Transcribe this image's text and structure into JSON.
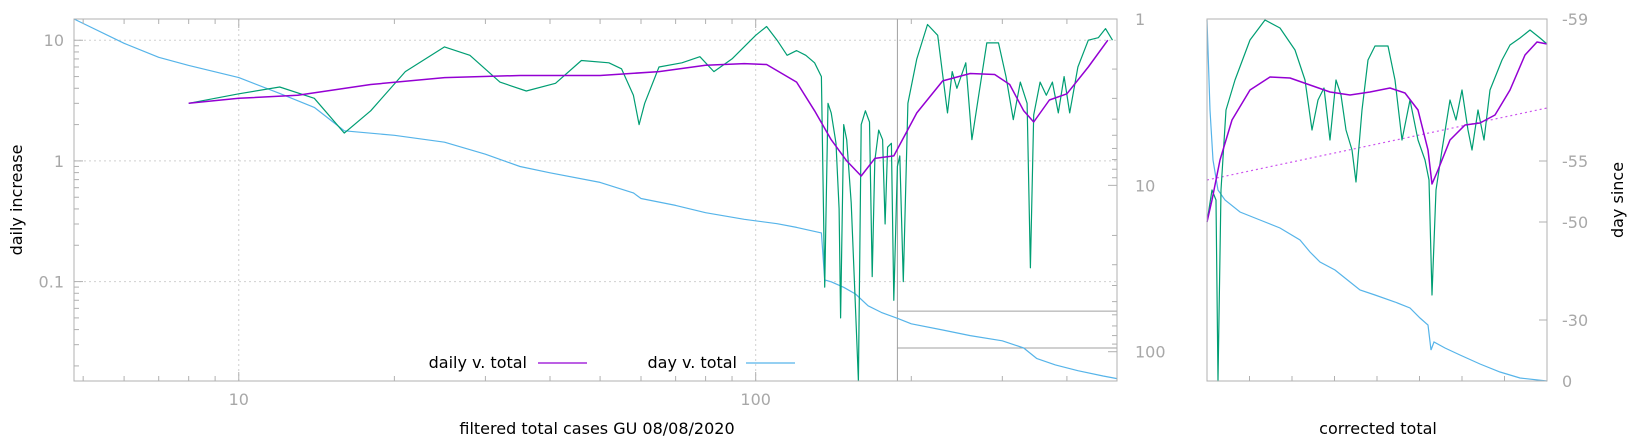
{
  "chart_data": [
    {
      "type": "line",
      "scale": "log-log",
      "xlabel": "filtered total cases GU 08/08/2020",
      "ylabel": "daily increase",
      "xlim": [
        4.8,
        500
      ],
      "ylim": [
        0.015,
        15
      ],
      "y2lim": [
        1,
        150
      ],
      "x_ticks": [
        {
          "v": 10,
          "label": "10"
        },
        {
          "v": 100,
          "label": "100"
        }
      ],
      "y_ticks": [
        {
          "v": 10,
          "label": "10"
        },
        {
          "v": 1,
          "label": "1"
        },
        {
          "v": 0.1,
          "label": "0.1"
        }
      ],
      "y2_ticks": [
        {
          "v": 1,
          "label": "1"
        },
        {
          "v": 10,
          "label": "10"
        },
        {
          "v": 100,
          "label": "100"
        }
      ],
      "grid": true,
      "legend": "bottom-center",
      "colors": {
        "daily": "#9400d3",
        "raw": "#009e73",
        "day": "#56b4e9",
        "axis": "#b0b0b0",
        "ref": "#a0a0a0"
      },
      "reference_lines": {
        "x": 188,
        "y2": [
          57,
          95
        ]
      },
      "series": [
        {
          "name": "daily v. total",
          "key": "daily",
          "points": [
            [
              8,
              3.0
            ],
            [
              10,
              3.3
            ],
            [
              13,
              3.5
            ],
            [
              18,
              4.3
            ],
            [
              25,
              4.9
            ],
            [
              35,
              5.1
            ],
            [
              50,
              5.1
            ],
            [
              65,
              5.5
            ],
            [
              80,
              6.2
            ],
            [
              95,
              6.4
            ],
            [
              105,
              6.3
            ],
            [
              120,
              4.5
            ],
            [
              130,
              2.6
            ],
            [
              140,
              1.5
            ],
            [
              150,
              1.0
            ],
            [
              160,
              0.75
            ],
            [
              170,
              1.05
            ],
            [
              185,
              1.1
            ],
            [
              205,
              2.5
            ],
            [
              230,
              4.6
            ],
            [
              260,
              5.3
            ],
            [
              290,
              5.2
            ],
            [
              310,
              4.3
            ],
            [
              330,
              2.6
            ],
            [
              345,
              2.1
            ],
            [
              370,
              3.2
            ],
            [
              400,
              3.6
            ],
            [
              440,
              6.0
            ],
            [
              480,
              10.0
            ]
          ]
        },
        {
          "name": "",
          "key": "raw",
          "points": [
            [
              8,
              3.0
            ],
            [
              10,
              3.6
            ],
            [
              12,
              4.1
            ],
            [
              14,
              3.3
            ],
            [
              16,
              1.7
            ],
            [
              18,
              2.6
            ],
            [
              21,
              5.5
            ],
            [
              25,
              8.8
            ],
            [
              28,
              7.5
            ],
            [
              32,
              4.5
            ],
            [
              36,
              3.8
            ],
            [
              41,
              4.4
            ],
            [
              46,
              6.8
            ],
            [
              52,
              6.5
            ],
            [
              55,
              5.8
            ],
            [
              58,
              3.5
            ],
            [
              59.5,
              2.0
            ],
            [
              61,
              3.0
            ],
            [
              65,
              6.0
            ],
            [
              72,
              6.5
            ],
            [
              78,
              7.3
            ],
            [
              83,
              5.5
            ],
            [
              90,
              7.0
            ],
            [
              100,
              11.0
            ],
            [
              105,
              13.0
            ],
            [
              110,
              10.0
            ],
            [
              115,
              7.5
            ],
            [
              120,
              8.2
            ],
            [
              125,
              7.5
            ],
            [
              130,
              6.5
            ],
            [
              134,
              5.0
            ],
            [
              136,
              0.09
            ],
            [
              138,
              3.0
            ],
            [
              140,
              2.5
            ],
            [
              143,
              1.4
            ],
            [
              145,
              0.4
            ],
            [
              146,
              0.05
            ],
            [
              148,
              2.0
            ],
            [
              150,
              1.5
            ],
            [
              153,
              0.45
            ],
            [
              156,
              0.06
            ],
            [
              158,
              0.012
            ],
            [
              160,
              2.0
            ],
            [
              163,
              2.6
            ],
            [
              166,
              2.1
            ],
            [
              168,
              0.11
            ],
            [
              170,
              1.0
            ],
            [
              173,
              1.8
            ],
            [
              176,
              1.5
            ],
            [
              178,
              0.3
            ],
            [
              180,
              1.3
            ],
            [
              183,
              1.4
            ],
            [
              185,
              0.07
            ],
            [
              188,
              0.9
            ],
            [
              190,
              1.1
            ],
            [
              193,
              0.1
            ],
            [
              197,
              3.0
            ],
            [
              205,
              7.0
            ],
            [
              215,
              13.5
            ],
            [
              225,
              11.0
            ],
            [
              235,
              2.5
            ],
            [
              240,
              5.5
            ],
            [
              245,
              4.0
            ],
            [
              255,
              6.5
            ],
            [
              262,
              1.5
            ],
            [
              270,
              3.5
            ],
            [
              280,
              9.5
            ],
            [
              295,
              9.5
            ],
            [
              305,
              5.0
            ],
            [
              315,
              2.2
            ],
            [
              325,
              4.5
            ],
            [
              335,
              3.0
            ],
            [
              340,
              0.13
            ],
            [
              345,
              2.4
            ],
            [
              355,
              4.5
            ],
            [
              365,
              3.5
            ],
            [
              375,
              4.5
            ],
            [
              385,
              2.5
            ],
            [
              395,
              5.0
            ],
            [
              405,
              2.5
            ],
            [
              420,
              6.0
            ],
            [
              440,
              10.0
            ],
            [
              460,
              10.5
            ],
            [
              475,
              12.5
            ],
            [
              490,
              10.0
            ]
          ]
        },
        {
          "name": "day v. total",
          "key": "day",
          "points": [
            [
              4.8,
              1.0
            ],
            [
              6,
              1.4
            ],
            [
              7,
              1.7
            ],
            [
              8,
              1.9
            ],
            [
              10,
              2.25
            ],
            [
              12,
              2.8
            ],
            [
              14,
              3.4
            ],
            [
              16,
              4.7
            ],
            [
              20,
              5.0
            ],
            [
              25,
              5.5
            ],
            [
              30,
              6.5
            ],
            [
              35,
              7.7
            ],
            [
              40,
              8.4
            ],
            [
              50,
              9.6
            ],
            [
              58,
              11.1
            ],
            [
              60,
              12.0
            ],
            [
              70,
              13.2
            ],
            [
              80,
              14.6
            ],
            [
              95,
              16.0
            ],
            [
              110,
              17.0
            ],
            [
              120,
              17.9
            ],
            [
              134,
              19.3
            ],
            [
              136,
              37.0
            ],
            [
              140,
              38.0
            ],
            [
              148,
              41.0
            ],
            [
              156,
              45.0
            ],
            [
              165,
              53.0
            ],
            [
              175,
              58.0
            ],
            [
              188,
              63.0
            ],
            [
              200,
              68.0
            ],
            [
              230,
              74.0
            ],
            [
              260,
              80.0
            ],
            [
              300,
              86.0
            ],
            [
              330,
              95.0
            ],
            [
              350,
              110.0
            ],
            [
              380,
              120.0
            ],
            [
              420,
              130.0
            ],
            [
              470,
              140.0
            ],
            [
              500,
              145.0
            ]
          ]
        }
      ]
    },
    {
      "type": "line",
      "xlabel": "corrected total",
      "ylabel": "day since",
      "y2_ticks": [
        {
          "v": -59,
          "label": "-59"
        },
        {
          "v": -55,
          "label": "-55"
        },
        {
          "v": -50,
          "label": "-50"
        },
        {
          "v": -30,
          "label": "-30"
        },
        {
          "v": 0,
          "label": "0"
        }
      ],
      "legend": "none",
      "colors": {
        "daily": "#9400d3",
        "raw": "#009e73",
        "day": "#56b4e9",
        "trend": "#cc55ee"
      }
    }
  ]
}
